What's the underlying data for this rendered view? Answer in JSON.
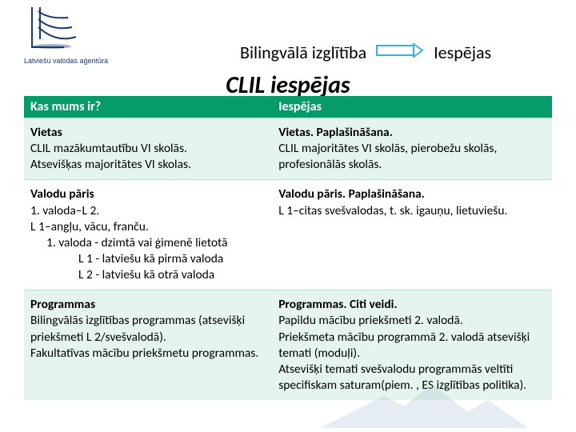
{
  "logo_caption": "Latviešu valodas aģentūra",
  "top": {
    "left": "Bilingvālā izglītība",
    "right": "Iespējas"
  },
  "title": "CLIL iespējas",
  "colors": {
    "header_bg": "#089b6a",
    "header_text": "#ffffff",
    "row_alt_bg": "#e6f4ee",
    "arrow_stroke": "#38b2e0",
    "logo_color": "#1a3a6e"
  },
  "headers": {
    "c1": "Kas mums ir?",
    "c2": "Iespējas"
  },
  "rows": [
    {
      "c1_h": "Vietas",
      "c1_b": "CLIL mazākumtautību VI skolās.\nAtsevišķas majoritātes VI skolas.",
      "c2_h": "Vietas. Paplašināšana.",
      "c2_b": "CLIL majoritātes VI skolās, pierobežu skolās, profesionālās skolās."
    },
    {
      "c1_h": "Valodu pāris",
      "c1_b": "1. valoda–L 2.\nL 1–angļu, vācu, franču.",
      "c1_ex1": "1. valoda  - dzimtā vai ģimenē lietotā",
      "c1_ex2": "L 1 - latviešu kā pirmā valoda",
      "c1_ex3": "L 2 - latviešu kā otrā valoda",
      "c2_h": "Valodu pāris. Paplašināšana.",
      "c2_b": "L 1–citas svešvalodas, t. sk. igauņu, lietuviešu."
    },
    {
      "c1_h": "Programmas",
      "c1_b": "Bilingvālās izglītības programmas (atsevišķi priekšmeti L 2/svešvalodā).\nFakultatīvas mācību priekšmetu programmas.",
      "c2_h": "Programmas. Citi veidi.",
      "c2_b": " Papildu mācību priekšmeti 2. valodā.\n Priekšmeta mācību programmā 2. valodā atsevišķi temati (moduļi).\nAtsevišķi temati svešvalodu programmās veltīti specifiskam saturam(piem. , ES izglītības politika)."
    }
  ]
}
